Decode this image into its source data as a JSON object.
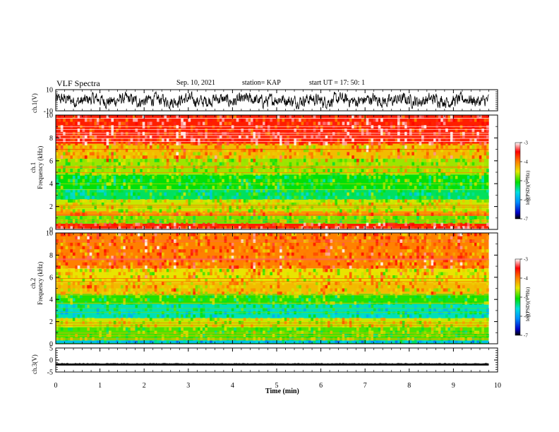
{
  "header": {
    "title": "VLF Spectra",
    "date": "Sep. 10, 2021",
    "station": "station= KAP",
    "start": "start  UT  =   17: 50: 1"
  },
  "chart_data": [
    {
      "type": "line",
      "panel": "ch1-waveform",
      "ylabel": "ch.1(V)",
      "ylim": [
        -10,
        10
      ],
      "yticks": [
        "10",
        "-10"
      ],
      "xlim": [
        0,
        10
      ],
      "series": [
        {
          "x_range": [
            0,
            9.8
          ],
          "values": "noise waveform, range approx -7 to 7 V",
          "color": "#000000"
        }
      ]
    },
    {
      "type": "heatmap",
      "panel": "ch1-spectrogram",
      "ylabel": "ch.1 Frequency (kHz)",
      "ylim": [
        0,
        10
      ],
      "yticks": [
        "0",
        "2",
        "4",
        "6",
        "8",
        "10"
      ],
      "xlim": [
        0,
        10
      ],
      "data_x_range": [
        0,
        9.8
      ],
      "bands": [
        {
          "f": [
            0,
            0.5
          ],
          "level": -3.6
        },
        {
          "f": [
            0.5,
            1.2
          ],
          "level": -4.8
        },
        {
          "f": [
            1.2,
            1.6
          ],
          "level": -4.1
        },
        {
          "f": [
            1.6,
            2.6
          ],
          "level": -4.6
        },
        {
          "f": [
            2.6,
            3.5
          ],
          "level": -5.3
        },
        {
          "f": [
            3.5,
            4.8
          ],
          "level": -5.1
        },
        {
          "f": [
            4.8,
            6.2
          ],
          "level": -4.7
        },
        {
          "f": [
            6.2,
            7.5
          ],
          "level": -4.3
        },
        {
          "f": [
            7.5,
            10
          ],
          "level": -3.6
        }
      ],
      "colorbar": {
        "label": "log(PSD)(V²/Hz)",
        "ticks": [
          "-3",
          "-4",
          "-5",
          "-6",
          "-7"
        ],
        "range": [
          -7,
          -3
        ]
      }
    },
    {
      "type": "heatmap",
      "panel": "ch2-spectrogram",
      "ylabel": "ch.2 Frequency (kHz)",
      "ylim": [
        0,
        10
      ],
      "yticks": [
        "0",
        "2",
        "4",
        "6",
        "8",
        "10"
      ],
      "xlim": [
        0,
        10
      ],
      "data_x_range": [
        0,
        9.8
      ],
      "bands": [
        {
          "f": [
            0,
            0.3
          ],
          "level": -5.8
        },
        {
          "f": [
            0.3,
            1.5
          ],
          "level": -4.9
        },
        {
          "f": [
            1.5,
            2.3
          ],
          "level": -4.6
        },
        {
          "f": [
            2.3,
            3.6
          ],
          "level": -5.5
        },
        {
          "f": [
            3.6,
            4.5
          ],
          "level": -5.0
        },
        {
          "f": [
            4.5,
            5.5
          ],
          "level": -4.3
        },
        {
          "f": [
            5.5,
            6.8
          ],
          "level": -4.5
        },
        {
          "f": [
            6.8,
            10
          ],
          "level": -4.0
        }
      ],
      "colorbar": {
        "label": "log(PSD)(V²/Hz)",
        "ticks": [
          "-3",
          "-4",
          "-5",
          "-6",
          "-7"
        ],
        "range": [
          -7,
          -3
        ]
      }
    },
    {
      "type": "line",
      "panel": "ch3-waveform",
      "ylabel": "ch.3(V)",
      "ylim": [
        -5,
        5
      ],
      "yticks": [
        "5",
        "0",
        "-5"
      ],
      "xlim": [
        0,
        10
      ],
      "series": [
        {
          "x_range": [
            0,
            9.8
          ],
          "values": "flat band approx -2.3 to -1.5 V",
          "color": "#000000"
        }
      ]
    }
  ],
  "xaxis": {
    "label": "Time  (min)",
    "ticks": [
      "0",
      "1",
      "2",
      "3",
      "4",
      "5",
      "6",
      "7",
      "8",
      "9",
      "10"
    ]
  },
  "colors": {
    "bg": "#ffffff",
    "line": "#000000"
  }
}
